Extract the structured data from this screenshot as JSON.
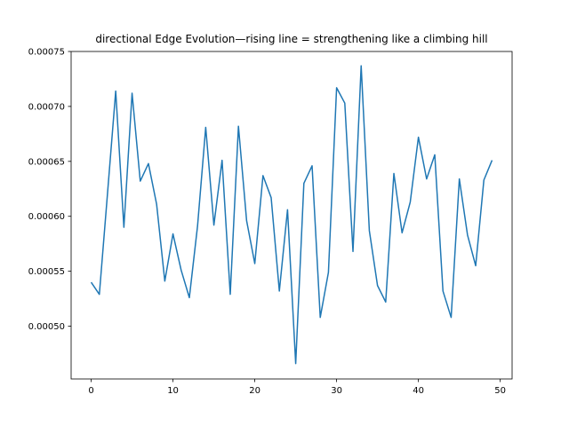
{
  "chart_data": {
    "type": "line",
    "title": "directional Edge Evolution—rising line = strengthening like a climbing hill",
    "xlabel": "",
    "ylabel": "",
    "xlim": [
      -2.45,
      51.45
    ],
    "ylim": [
      0.000452,
      0.00075
    ],
    "x_ticks": [
      0,
      10,
      20,
      30,
      40,
      50
    ],
    "x_tick_labels": [
      "0",
      "10",
      "20",
      "30",
      "40",
      "50"
    ],
    "y_ticks": [
      0.0005,
      0.00055,
      0.0006,
      0.00065,
      0.0007,
      0.00075
    ],
    "y_tick_labels": [
      "0.00050",
      "0.00055",
      "0.00060",
      "0.00065",
      "0.00070",
      "0.00075"
    ],
    "grid": false,
    "legend": "none",
    "line_color": "#1f77b4",
    "series": [
      {
        "x": [
          0,
          1,
          2,
          3,
          4,
          5,
          6,
          7,
          8,
          9,
          10,
          11,
          12,
          13,
          14,
          15,
          16,
          17,
          18,
          19,
          20,
          21,
          22,
          23,
          24,
          25,
          26,
          27,
          28,
          29,
          30,
          31,
          32,
          33,
          34,
          35,
          36,
          37,
          38,
          39,
          40,
          41,
          42,
          43,
          44,
          45,
          46,
          47,
          48,
          49
        ],
        "values": [
          0.00054,
          0.000529,
          0.000621,
          0.000714,
          0.00059,
          0.000712,
          0.000632,
          0.000648,
          0.000611,
          0.000541,
          0.000584,
          0.000551,
          0.000526,
          0.000591,
          0.000681,
          0.000592,
          0.000651,
          0.000529,
          0.000682,
          0.000596,
          0.000557,
          0.000637,
          0.000617,
          0.000532,
          0.000606,
          0.000466,
          0.00063,
          0.000646,
          0.000508,
          0.000549,
          0.000717,
          0.000703,
          0.000568,
          0.000737,
          0.000587,
          0.000537,
          0.000522,
          0.000639,
          0.000585,
          0.000613,
          0.000672,
          0.000634,
          0.000656,
          0.000532,
          0.000508,
          0.000634,
          0.000583,
          0.000555,
          0.000633,
          0.000651
        ]
      }
    ]
  }
}
